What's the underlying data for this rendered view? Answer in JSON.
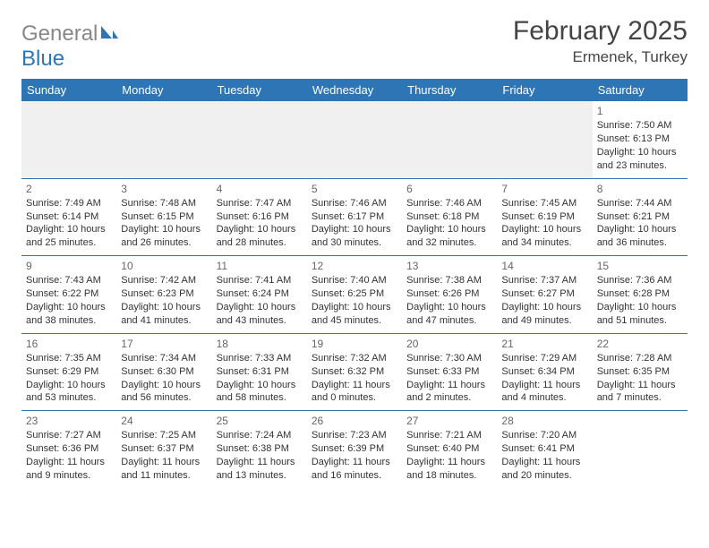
{
  "logo": {
    "text1": "General",
    "text2": "Blue"
  },
  "title": "February 2025",
  "location": "Ermenek, Turkey",
  "colors": {
    "header_bg": "#2e75b6",
    "header_text": "#ffffff",
    "cell_border": "#2e75b6",
    "logo_gray": "#888888",
    "logo_blue": "#2e75b6",
    "body_text": "#333333",
    "daynum": "#666666",
    "empty_bg": "#f0f0f0"
  },
  "day_headers": [
    "Sunday",
    "Monday",
    "Tuesday",
    "Wednesday",
    "Thursday",
    "Friday",
    "Saturday"
  ],
  "weeks": [
    [
      null,
      null,
      null,
      null,
      null,
      null,
      {
        "n": "1",
        "sr": "Sunrise: 7:50 AM",
        "ss": "Sunset: 6:13 PM",
        "dl": "Daylight: 10 hours and 23 minutes."
      }
    ],
    [
      {
        "n": "2",
        "sr": "Sunrise: 7:49 AM",
        "ss": "Sunset: 6:14 PM",
        "dl": "Daylight: 10 hours and 25 minutes."
      },
      {
        "n": "3",
        "sr": "Sunrise: 7:48 AM",
        "ss": "Sunset: 6:15 PM",
        "dl": "Daylight: 10 hours and 26 minutes."
      },
      {
        "n": "4",
        "sr": "Sunrise: 7:47 AM",
        "ss": "Sunset: 6:16 PM",
        "dl": "Daylight: 10 hours and 28 minutes."
      },
      {
        "n": "5",
        "sr": "Sunrise: 7:46 AM",
        "ss": "Sunset: 6:17 PM",
        "dl": "Daylight: 10 hours and 30 minutes."
      },
      {
        "n": "6",
        "sr": "Sunrise: 7:46 AM",
        "ss": "Sunset: 6:18 PM",
        "dl": "Daylight: 10 hours and 32 minutes."
      },
      {
        "n": "7",
        "sr": "Sunrise: 7:45 AM",
        "ss": "Sunset: 6:19 PM",
        "dl": "Daylight: 10 hours and 34 minutes."
      },
      {
        "n": "8",
        "sr": "Sunrise: 7:44 AM",
        "ss": "Sunset: 6:21 PM",
        "dl": "Daylight: 10 hours and 36 minutes."
      }
    ],
    [
      {
        "n": "9",
        "sr": "Sunrise: 7:43 AM",
        "ss": "Sunset: 6:22 PM",
        "dl": "Daylight: 10 hours and 38 minutes."
      },
      {
        "n": "10",
        "sr": "Sunrise: 7:42 AM",
        "ss": "Sunset: 6:23 PM",
        "dl": "Daylight: 10 hours and 41 minutes."
      },
      {
        "n": "11",
        "sr": "Sunrise: 7:41 AM",
        "ss": "Sunset: 6:24 PM",
        "dl": "Daylight: 10 hours and 43 minutes."
      },
      {
        "n": "12",
        "sr": "Sunrise: 7:40 AM",
        "ss": "Sunset: 6:25 PM",
        "dl": "Daylight: 10 hours and 45 minutes."
      },
      {
        "n": "13",
        "sr": "Sunrise: 7:38 AM",
        "ss": "Sunset: 6:26 PM",
        "dl": "Daylight: 10 hours and 47 minutes."
      },
      {
        "n": "14",
        "sr": "Sunrise: 7:37 AM",
        "ss": "Sunset: 6:27 PM",
        "dl": "Daylight: 10 hours and 49 minutes."
      },
      {
        "n": "15",
        "sr": "Sunrise: 7:36 AM",
        "ss": "Sunset: 6:28 PM",
        "dl": "Daylight: 10 hours and 51 minutes."
      }
    ],
    [
      {
        "n": "16",
        "sr": "Sunrise: 7:35 AM",
        "ss": "Sunset: 6:29 PM",
        "dl": "Daylight: 10 hours and 53 minutes."
      },
      {
        "n": "17",
        "sr": "Sunrise: 7:34 AM",
        "ss": "Sunset: 6:30 PM",
        "dl": "Daylight: 10 hours and 56 minutes."
      },
      {
        "n": "18",
        "sr": "Sunrise: 7:33 AM",
        "ss": "Sunset: 6:31 PM",
        "dl": "Daylight: 10 hours and 58 minutes."
      },
      {
        "n": "19",
        "sr": "Sunrise: 7:32 AM",
        "ss": "Sunset: 6:32 PM",
        "dl": "Daylight: 11 hours and 0 minutes."
      },
      {
        "n": "20",
        "sr": "Sunrise: 7:30 AM",
        "ss": "Sunset: 6:33 PM",
        "dl": "Daylight: 11 hours and 2 minutes."
      },
      {
        "n": "21",
        "sr": "Sunrise: 7:29 AM",
        "ss": "Sunset: 6:34 PM",
        "dl": "Daylight: 11 hours and 4 minutes."
      },
      {
        "n": "22",
        "sr": "Sunrise: 7:28 AM",
        "ss": "Sunset: 6:35 PM",
        "dl": "Daylight: 11 hours and 7 minutes."
      }
    ],
    [
      {
        "n": "23",
        "sr": "Sunrise: 7:27 AM",
        "ss": "Sunset: 6:36 PM",
        "dl": "Daylight: 11 hours and 9 minutes."
      },
      {
        "n": "24",
        "sr": "Sunrise: 7:25 AM",
        "ss": "Sunset: 6:37 PM",
        "dl": "Daylight: 11 hours and 11 minutes."
      },
      {
        "n": "25",
        "sr": "Sunrise: 7:24 AM",
        "ss": "Sunset: 6:38 PM",
        "dl": "Daylight: 11 hours and 13 minutes."
      },
      {
        "n": "26",
        "sr": "Sunrise: 7:23 AM",
        "ss": "Sunset: 6:39 PM",
        "dl": "Daylight: 11 hours and 16 minutes."
      },
      {
        "n": "27",
        "sr": "Sunrise: 7:21 AM",
        "ss": "Sunset: 6:40 PM",
        "dl": "Daylight: 11 hours and 18 minutes."
      },
      {
        "n": "28",
        "sr": "Sunrise: 7:20 AM",
        "ss": "Sunset: 6:41 PM",
        "dl": "Daylight: 11 hours and 20 minutes."
      },
      null
    ]
  ]
}
